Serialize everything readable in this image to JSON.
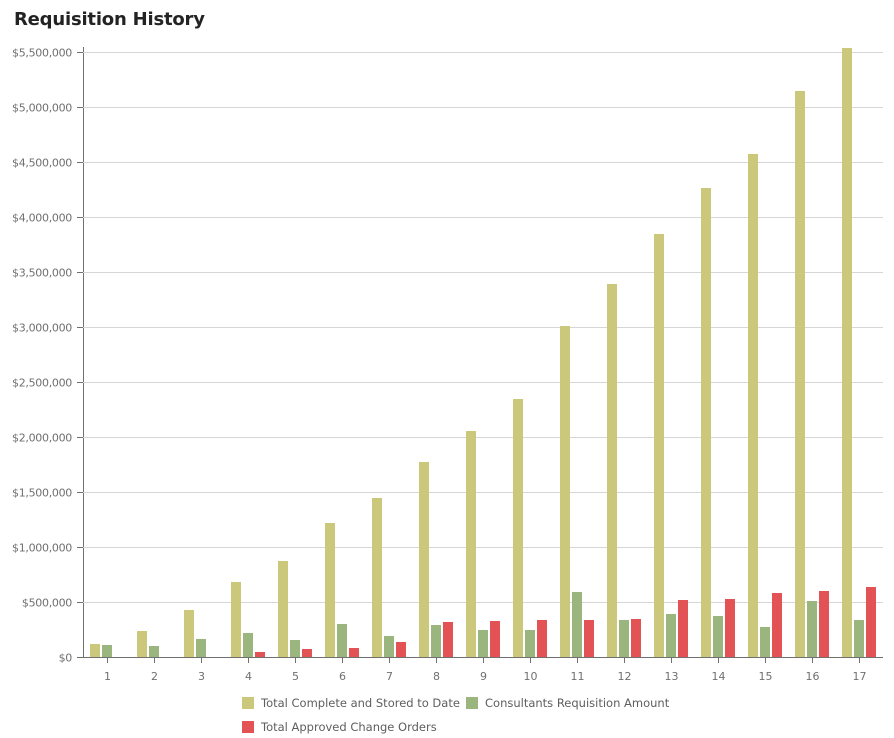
{
  "header": {
    "title": "Requisition History"
  },
  "colors": {
    "total_complete": "#cbc87c",
    "consultants": "#9bb57e",
    "change_orders": "#e35356",
    "grid": "#d6d6d6",
    "axis": "#707070"
  },
  "y_axis": {
    "ticks": [
      "$0",
      "$500,000",
      "$1,000,000",
      "$1,500,000",
      "$2,000,000",
      "$2,500,000",
      "$3,000,000",
      "$3,500,000",
      "$4,000,000",
      "$4,500,000",
      "$5,000,000",
      "$5,500,000"
    ]
  },
  "x_axis": {
    "ticks": [
      "1",
      "2",
      "3",
      "4",
      "5",
      "6",
      "7",
      "8",
      "9",
      "10",
      "11",
      "12",
      "13",
      "14",
      "15",
      "16",
      "17"
    ]
  },
  "legend": {
    "items": [
      {
        "label": "Total Complete and Stored to Date",
        "color": "#cbc87c"
      },
      {
        "label": "Consultants Requisition Amount",
        "color": "#9bb57e"
      },
      {
        "label": "Total Approved Change Orders",
        "color": "#e35356"
      }
    ]
  },
  "chart_data": {
    "type": "bar",
    "title": "Requisition History",
    "xlabel": "",
    "ylabel": "",
    "categories": [
      "1",
      "2",
      "3",
      "4",
      "5",
      "6",
      "7",
      "8",
      "9",
      "10",
      "11",
      "12",
      "13",
      "14",
      "15",
      "16",
      "17"
    ],
    "ylim": [
      0,
      5500000
    ],
    "grid": true,
    "legend_position": "bottom",
    "series": [
      {
        "name": "Total Complete and Stored to Date",
        "color": "#cbc87c",
        "values": [
          118000,
          236000,
          427000,
          682000,
          873000,
          1218000,
          1445000,
          1773000,
          2055000,
          2345000,
          3010000,
          3390000,
          3845000,
          4264000,
          4573000,
          5145000,
          5536000
        ]
      },
      {
        "name": "Consultants Requisition Amount",
        "color": "#9bb57e",
        "values": [
          109000,
          100000,
          164000,
          218000,
          155000,
          300000,
          191000,
          291000,
          245000,
          245000,
          591000,
          336000,
          391000,
          373000,
          273000,
          509000,
          336000
        ]
      },
      {
        "name": "Total Approved Change Orders",
        "color": "#e35356",
        "values": [
          0,
          0,
          0,
          45000,
          73000,
          82000,
          136000,
          318000,
          327000,
          336000,
          336000,
          345000,
          518000,
          527000,
          582000,
          600000,
          636000
        ]
      }
    ]
  }
}
